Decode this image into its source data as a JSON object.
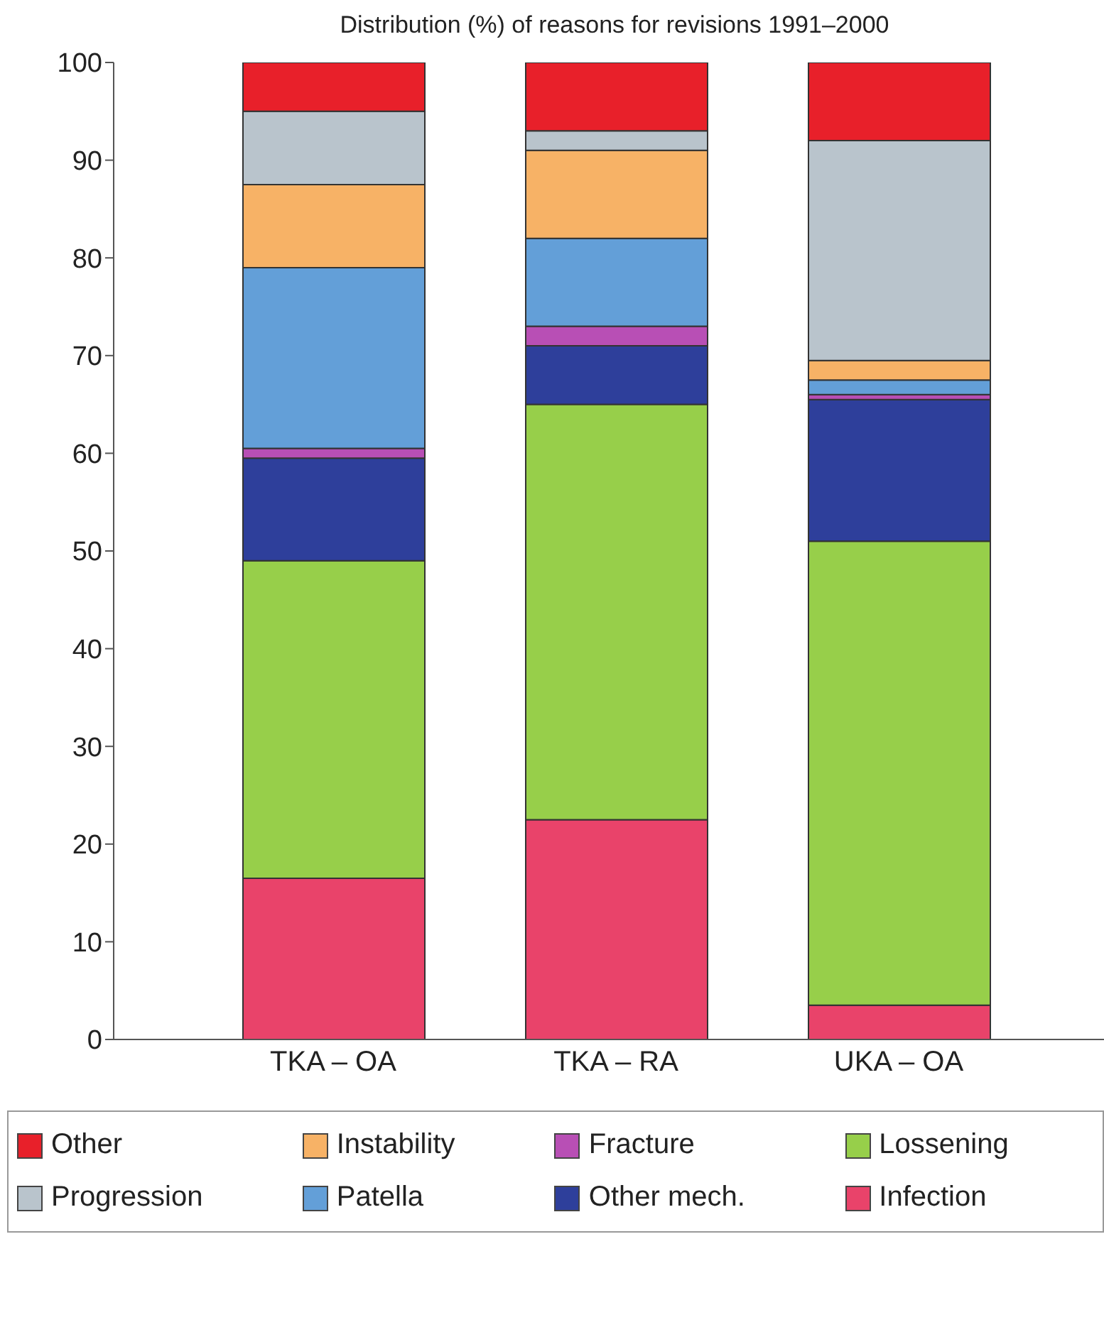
{
  "chart_data": {
    "type": "bar",
    "title": "Distribution (%) of reasons for revisions 1991–2000",
    "categories": [
      "TKA – OA",
      "TKA – RA",
      "UKA – OA"
    ],
    "stacked": true,
    "ylim": [
      0,
      100
    ],
    "yticks": [
      0,
      10,
      20,
      30,
      40,
      50,
      60,
      70,
      80,
      90,
      100
    ],
    "grid": false,
    "legend": "bottom",
    "series": [
      {
        "name": "Infection",
        "color": "#e9436a",
        "values": [
          16.5,
          22.5,
          3.5
        ]
      },
      {
        "name": "Lossening",
        "color": "#97cf4a",
        "values": [
          32.5,
          42.5,
          47.5
        ]
      },
      {
        "name": "Other mech.",
        "color": "#2e3f9b",
        "values": [
          10.5,
          6,
          14.5
        ]
      },
      {
        "name": "Fracture",
        "color": "#b84fb5",
        "values": [
          1,
          2,
          0.5
        ]
      },
      {
        "name": "Patella",
        "color": "#639fd8",
        "values": [
          18.5,
          9,
          1.5
        ]
      },
      {
        "name": "Instability",
        "color": "#f7b266",
        "values": [
          8.5,
          9,
          2
        ]
      },
      {
        "name": "Progression",
        "color": "#b9c4cc",
        "values": [
          7.5,
          2,
          22.5
        ]
      },
      {
        "name": "Other",
        "color": "#e8202a",
        "values": [
          5,
          7,
          8
        ]
      }
    ]
  }
}
